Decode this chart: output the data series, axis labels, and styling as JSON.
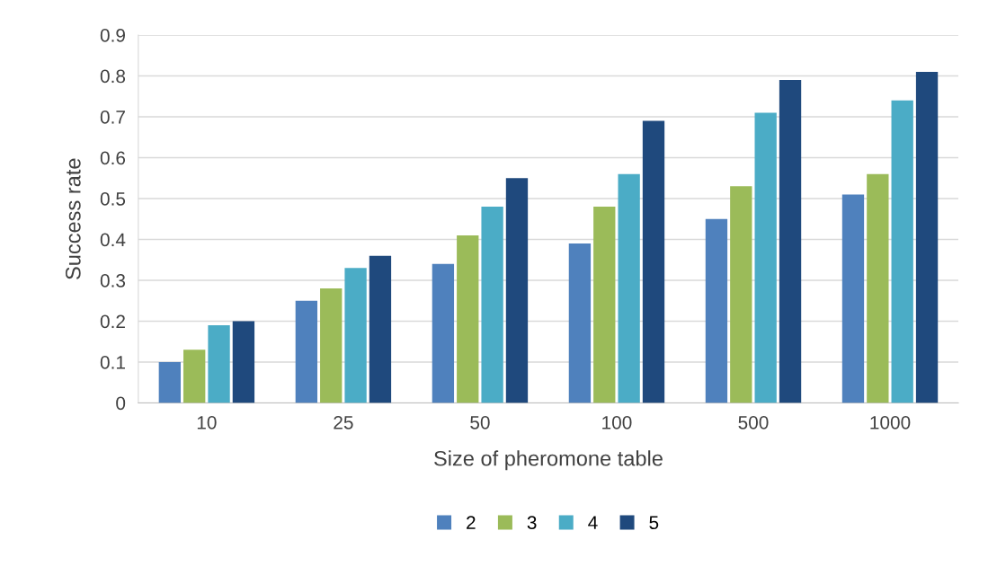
{
  "chart_data": {
    "type": "bar",
    "xlabel": "Size of pheromone table",
    "ylabel": "Success rate",
    "categories": [
      "10",
      "25",
      "50",
      "100",
      "500",
      "1000"
    ],
    "series": [
      {
        "name": "2",
        "color": "#4f81bd",
        "values": [
          0.1,
          0.25,
          0.34,
          0.39,
          0.45,
          0.51
        ]
      },
      {
        "name": "3",
        "color": "#9bbb59",
        "values": [
          0.13,
          0.28,
          0.41,
          0.48,
          0.53,
          0.56
        ]
      },
      {
        "name": "4",
        "color": "#4bacc6",
        "values": [
          0.19,
          0.33,
          0.48,
          0.56,
          0.71,
          0.74
        ]
      },
      {
        "name": "5",
        "color": "#1f497d",
        "values": [
          0.2,
          0.36,
          0.55,
          0.69,
          0.79,
          0.81
        ]
      }
    ],
    "ylim": [
      0,
      0.9
    ],
    "yticks": [
      0,
      0.1,
      0.2,
      0.3,
      0.4,
      0.5,
      0.6,
      0.7,
      0.8,
      0.9
    ],
    "grid": "y",
    "legend": "bottom"
  }
}
